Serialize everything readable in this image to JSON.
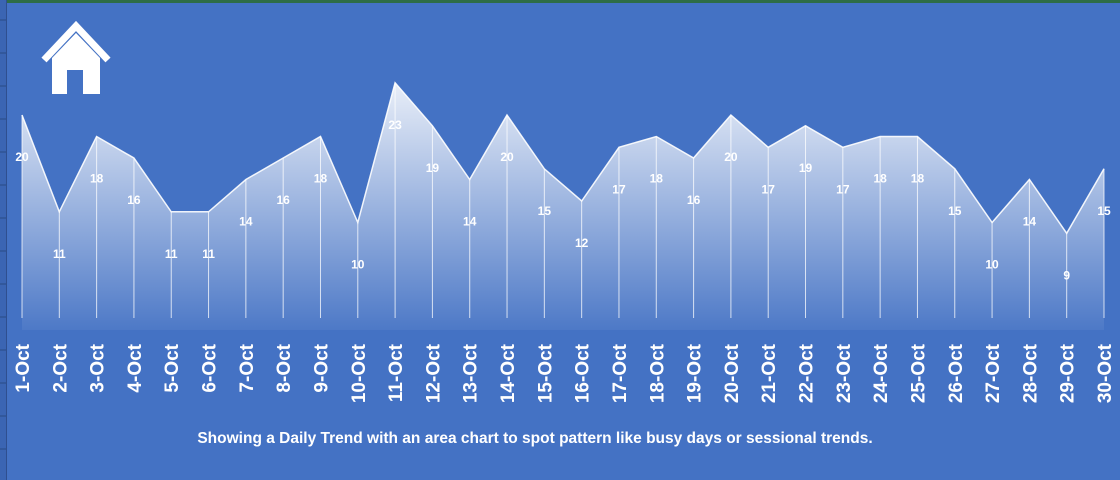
{
  "colors": {
    "background": "#4472c4",
    "area_top": "#ffffff",
    "text": "#ffffff"
  },
  "home_icon": "home-icon",
  "caption": "Showing a Daily Trend with an area chart to spot pattern like busy days or sessional trends.",
  "chart_data": {
    "type": "area",
    "title": "",
    "xlabel": "",
    "ylabel": "",
    "ylim": [
      0,
      25
    ],
    "grid": false,
    "legend": "none",
    "categories": [
      "1-Oct",
      "2-Oct",
      "3-Oct",
      "4-Oct",
      "5-Oct",
      "6-Oct",
      "7-Oct",
      "8-Oct",
      "9-Oct",
      "10-Oct",
      "11-Oct",
      "12-Oct",
      "13-Oct",
      "14-Oct",
      "15-Oct",
      "16-Oct",
      "17-Oct",
      "18-Oct",
      "19-Oct",
      "20-Oct",
      "21-Oct",
      "22-Oct",
      "23-Oct",
      "24-Oct",
      "25-Oct",
      "26-Oct",
      "27-Oct",
      "28-Oct",
      "29-Oct",
      "30-Oct"
    ],
    "values": [
      20,
      11,
      18,
      16,
      11,
      11,
      14,
      16,
      18,
      10,
      23,
      19,
      14,
      20,
      15,
      12,
      17,
      18,
      16,
      20,
      17,
      19,
      17,
      18,
      18,
      15,
      10,
      14,
      9,
      15
    ]
  }
}
